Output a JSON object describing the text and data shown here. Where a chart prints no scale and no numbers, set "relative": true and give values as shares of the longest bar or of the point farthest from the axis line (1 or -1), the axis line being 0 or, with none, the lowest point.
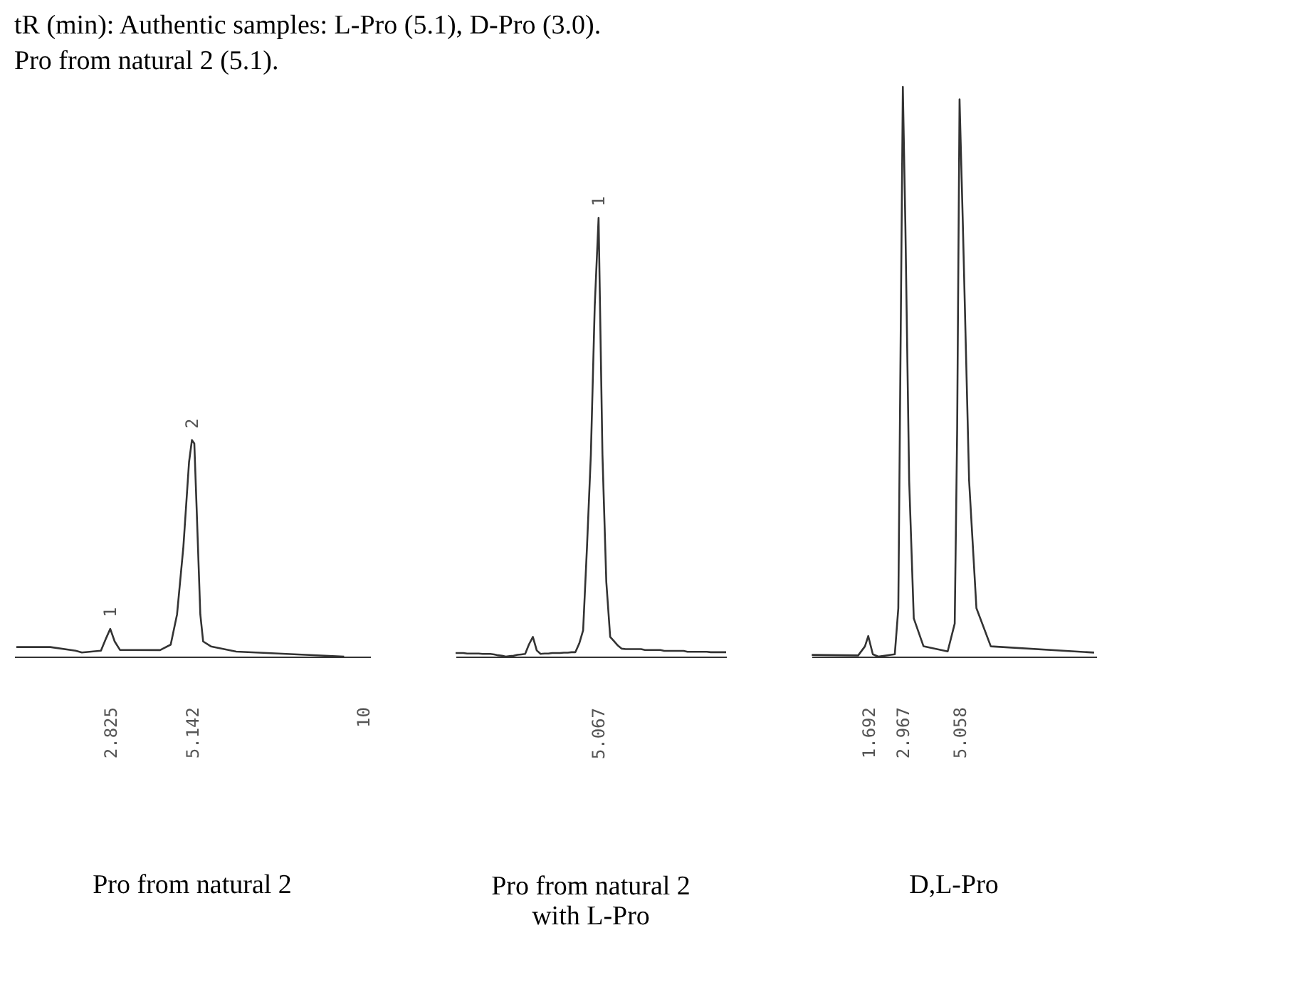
{
  "chart_data": [
    {
      "type": "line",
      "relative": true,
      "title": "Pro from natural 2",
      "xlim": [
        0.1,
        10.2
      ],
      "xticks": [
        {
          "value": 2.825,
          "label": "2.825"
        },
        {
          "value": 5.142,
          "label": "5.142"
        },
        {
          "value": 10,
          "label": "10"
        }
      ],
      "series": [
        {
          "color": "#333333",
          "x": [
            0.16,
            1.12,
            1.84,
            2.02,
            2.56,
            2.71,
            2.825,
            2.95,
            3.1,
            4.24,
            4.54,
            4.72,
            4.9,
            5.06,
            5.142,
            5.21,
            5.28,
            5.38,
            5.46,
            5.68,
            6.4,
            9.46
          ],
          "values": [
            0.044,
            0.044,
            0.027,
            0.019,
            0.027,
            0.086,
            0.128,
            0.07,
            0.031,
            0.03,
            0.055,
            0.195,
            0.508,
            0.898,
            1,
            0.984,
            0.664,
            0.195,
            0.07,
            0.047,
            0.023,
            0
          ]
        }
      ],
      "annotations": [
        "tR (min): Authentic samples: L-Pro (5.1), D-Pro (3.0).",
        "Pro from natural 2 (5.1).",
        {
          "text": "1",
          "x": 2.825,
          "y": 0.128
        },
        {
          "text": "2",
          "x": 5.142,
          "y": 1
        }
      ]
    },
    {
      "type": "line",
      "relative": true,
      "title": "Pro from natural 2\nwith L-Pro",
      "categories": [
        null,
        null,
        null,
        null,
        null,
        null,
        null,
        null,
        null,
        null,
        null,
        null,
        null,
        null,
        null,
        null,
        null,
        null,
        null,
        null,
        null,
        null,
        null,
        null,
        null,
        null,
        null,
        null,
        null,
        null,
        null,
        null,
        null,
        null,
        null,
        null,
        null,
        null,
        null,
        null,
        null,
        null,
        null,
        null,
        null,
        null,
        null,
        null,
        null,
        null,
        null,
        null,
        null,
        null,
        null,
        null,
        null,
        null,
        null,
        null,
        null,
        null,
        null,
        null,
        null,
        null,
        null,
        null,
        null,
        null,
        null
      ],
      "series": [
        {
          "color": "#333333",
          "values": [
            0.008,
            0.008,
            0.008,
            0.007,
            0.007,
            0.007,
            0.007,
            0.006,
            0.006,
            0.006,
            0.005,
            0.003,
            0.002,
            0,
            0.001,
            0.002,
            0.004,
            0.005,
            0.006,
            0.028,
            0.045,
            0.014,
            0.006,
            0.007,
            0.007,
            0.008,
            0.008,
            0.008,
            0.009,
            0.009,
            0.01,
            0.01,
            0.03,
            0.06,
            0.25,
            0.46,
            0.798,
            1,
            0.46,
            0.17,
            0.045,
            0.035,
            0.025,
            0.018,
            0.017,
            0.017,
            0.017,
            0.017,
            0.017,
            0.015,
            0.015,
            0.015,
            0.015,
            0.015,
            0.013,
            0.013,
            0.013,
            0.013,
            0.013,
            0.013,
            0.011,
            0.011,
            0.011,
            0.011,
            0.011,
            0.011,
            0.01,
            0.01,
            0.01,
            0.01,
            0.01
          ]
        }
      ],
      "annotations": [
        {
          "text": "1"
        },
        {
          "text": "5.067"
        }
      ]
    },
    {
      "type": "line",
      "relative": true,
      "title": "D,L-Pro",
      "xlim": [
        -0.4,
        10.1
      ],
      "xticks": [
        {
          "value": 1.692,
          "label": "1.692"
        },
        {
          "value": 2.967,
          "label": "2.967"
        },
        {
          "value": 5.058,
          "label": "5.058"
        }
      ],
      "series": [
        {
          "color": "#333333",
          "x": [
            -0.39,
            1.32,
            1.57,
            1.692,
            1.86,
            2.06,
            2.67,
            2.8,
            2.89,
            2.967,
            3.06,
            3.2,
            3.37,
            3.73,
            4.62,
            4.88,
            4.97,
            5.058,
            5.18,
            5.41,
            5.68,
            6.21,
            10.02
          ],
          "values": [
            0.003,
            0.002,
            0.018,
            0.036,
            0.004,
            0,
            0.004,
            0.085,
            0.578,
            1,
            0.758,
            0.309,
            0.067,
            0.018,
            0.009,
            0.058,
            0.399,
            0.978,
            0.758,
            0.309,
            0.085,
            0.018,
            0.007
          ]
        }
      ]
    }
  ]
}
